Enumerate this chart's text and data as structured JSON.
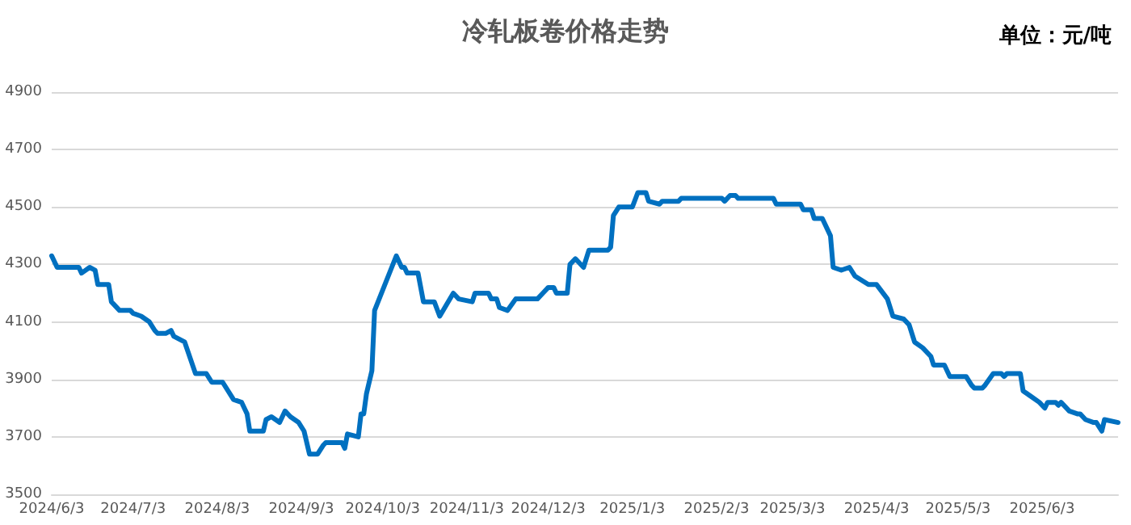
{
  "chart_data": {
    "type": "line",
    "title": "冷轧板卷价格走势",
    "annotations": [
      "单位：元/吨"
    ],
    "x": [
      "2024-06-03",
      "2024-06-05",
      "2024-06-13",
      "2024-06-14",
      "2024-06-17",
      "2024-06-19",
      "2024-06-20",
      "2024-06-24",
      "2024-06-25",
      "2024-06-28",
      "2024-07-02",
      "2024-07-03",
      "2024-07-06",
      "2024-07-09",
      "2024-07-11",
      "2024-07-12",
      "2024-07-15",
      "2024-07-17",
      "2024-07-18",
      "2024-07-22",
      "2024-07-26",
      "2024-07-30",
      "2024-08-01",
      "2024-08-05",
      "2024-08-09",
      "2024-08-12",
      "2024-08-14",
      "2024-08-15",
      "2024-08-20",
      "2024-08-21",
      "2024-08-23",
      "2024-08-26",
      "2024-08-28",
      "2024-08-30",
      "2024-09-02",
      "2024-09-04",
      "2024-09-06",
      "2024-09-09",
      "2024-09-11",
      "2024-09-12",
      "2024-09-18",
      "2024-09-19",
      "2024-09-20",
      "2024-09-24",
      "2024-09-25",
      "2024-09-26",
      "2024-09-27",
      "2024-09-29",
      "2024-09-30",
      "2024-10-08",
      "2024-10-10",
      "2024-10-11",
      "2024-10-12",
      "2024-10-16",
      "2024-10-18",
      "2024-10-22",
      "2024-10-24",
      "2024-10-29",
      "2024-10-31",
      "2024-11-05",
      "2024-11-06",
      "2024-11-11",
      "2024-11-12",
      "2024-11-14",
      "2024-11-15",
      "2024-11-18",
      "2024-11-21",
      "2024-11-29",
      "2024-12-01",
      "2024-12-03",
      "2024-12-05",
      "2024-12-06",
      "2024-12-10",
      "2024-12-11",
      "2024-12-13",
      "2024-12-16",
      "2024-12-18",
      "2024-12-25",
      "2024-12-26",
      "2024-12-27",
      "2024-12-29",
      "2025-01-03",
      "2025-01-05",
      "2025-01-08",
      "2025-01-09",
      "2025-01-13",
      "2025-01-14",
      "2025-01-20",
      "2025-01-21",
      "2025-02-05",
      "2025-02-06",
      "2025-02-08",
      "2025-02-10",
      "2025-02-11",
      "2025-02-24",
      "2025-02-25",
      "2025-03-06",
      "2025-03-07",
      "2025-03-10",
      "2025-03-11",
      "2025-03-14",
      "2025-03-17",
      "2025-03-18",
      "2025-03-21",
      "2025-03-24",
      "2025-03-26",
      "2025-03-31",
      "2025-04-03",
      "2025-04-07",
      "2025-04-09",
      "2025-04-13",
      "2025-04-15",
      "2025-04-17",
      "2025-04-20",
      "2025-04-23",
      "2025-04-24",
      "2025-04-28",
      "2025-04-30",
      "2025-05-06",
      "2025-05-08",
      "2025-05-09",
      "2025-05-12",
      "2025-05-13",
      "2025-05-16",
      "2025-05-19",
      "2025-05-20",
      "2025-05-21",
      "2025-05-26",
      "2025-05-27",
      "2025-05-30",
      "2025-06-02",
      "2025-06-04",
      "2025-06-05",
      "2025-06-08",
      "2025-06-09",
      "2025-06-10",
      "2025-06-13",
      "2025-06-16",
      "2025-06-17",
      "2025-06-19",
      "2025-06-22",
      "2025-06-23",
      "2025-06-25",
      "2025-06-26",
      "2025-07-01"
    ],
    "series": [
      {
        "color": "#0070c0",
        "values": [
          4330,
          4290,
          4290,
          4270,
          4290,
          4280,
          4230,
          4230,
          4170,
          4140,
          4140,
          4130,
          4120,
          4100,
          4070,
          4060,
          4060,
          4070,
          4050,
          4030,
          3920,
          3920,
          3890,
          3890,
          3830,
          3820,
          3780,
          3720,
          3720,
          3760,
          3770,
          3750,
          3790,
          3770,
          3750,
          3720,
          3640,
          3640,
          3670,
          3680,
          3680,
          3660,
          3710,
          3700,
          3780,
          3780,
          3850,
          3930,
          4140,
          4330,
          4290,
          4290,
          4270,
          4270,
          4170,
          4170,
          4120,
          4200,
          4180,
          4170,
          4200,
          4200,
          4180,
          4180,
          4150,
          4140,
          4180,
          4180,
          4200,
          4220,
          4220,
          4200,
          4200,
          4300,
          4320,
          4290,
          4350,
          4350,
          4360,
          4470,
          4500,
          4500,
          4550,
          4550,
          4520,
          4510,
          4520,
          4520,
          4530,
          4530,
          4520,
          4540,
          4540,
          4530,
          4530,
          4510,
          4510,
          4490,
          4490,
          4460,
          4460,
          4400,
          4290,
          4280,
          4290,
          4260,
          4230,
          4230,
          4180,
          4120,
          4110,
          4090,
          4030,
          4010,
          3980,
          3950,
          3950,
          3910,
          3910,
          3880,
          3870,
          3870,
          3880,
          3920,
          3920,
          3910,
          3920,
          3920,
          3860,
          3840,
          3820,
          3800,
          3820,
          3820,
          3810,
          3820,
          3790,
          3780,
          3780,
          3760,
          3750,
          3750,
          3720,
          3760,
          3750
        ]
      }
    ],
    "xlim": [
      "2024-06-03",
      "2025-07-01"
    ],
    "xticks": [
      {
        "value": "2024-06-03",
        "label": "2024/6/3"
      },
      {
        "value": "2024-07-03",
        "label": "2024/7/3"
      },
      {
        "value": "2024-08-03",
        "label": "2024/8/3"
      },
      {
        "value": "2024-09-03",
        "label": "2024/9/3"
      },
      {
        "value": "2024-10-03",
        "label": "2024/10/3"
      },
      {
        "value": "2024-11-03",
        "label": "2024/11/3"
      },
      {
        "value": "2024-12-03",
        "label": "2024/12/3"
      },
      {
        "value": "2025-01-03",
        "label": "2025/1/3"
      },
      {
        "value": "2025-02-03",
        "label": "2025/2/3"
      },
      {
        "value": "2025-03-03",
        "label": "2025/3/3"
      },
      {
        "value": "2025-04-03",
        "label": "2025/4/3"
      },
      {
        "value": "2025-05-03",
        "label": "2025/5/3"
      },
      {
        "value": "2025-06-03",
        "label": "2025/6/3"
      }
    ],
    "ylim": [
      3500,
      4900
    ],
    "yticks": [
      3500,
      3700,
      3900,
      4100,
      4300,
      4500,
      4700,
      4900
    ],
    "grid": "y",
    "marker": "none",
    "line_style": "solid"
  }
}
